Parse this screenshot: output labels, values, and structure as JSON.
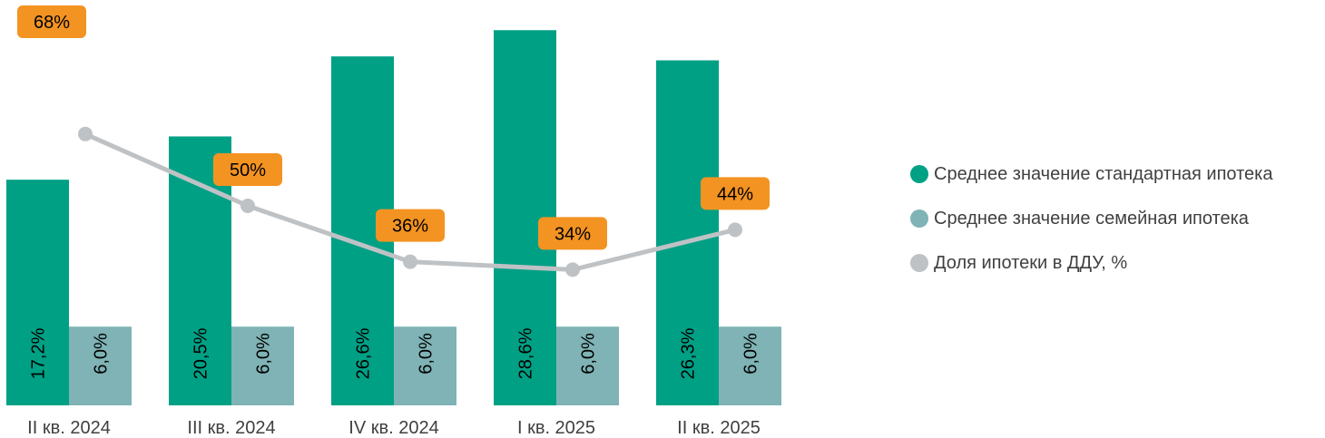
{
  "chart_data": {
    "type": "bar",
    "categories": [
      "II кв. 2024",
      "III кв. 2024",
      "IV кв. 2024",
      "I кв. 2025",
      "II кв. 2025"
    ],
    "series": [
      {
        "name": "Среднее значение стандартная ипотека",
        "type": "bar",
        "values": [
          17.2,
          20.5,
          26.6,
          28.6,
          26.3
        ],
        "labels": [
          "17,2%",
          "20,5%",
          "26,6%",
          "28,6%",
          "26,3%"
        ],
        "color": "#00A085"
      },
      {
        "name": "Среднее значение семейная ипотека",
        "type": "bar",
        "values": [
          6.0,
          6.0,
          6.0,
          6.0,
          6.0
        ],
        "labels": [
          "6,0%",
          "6,0%",
          "6,0%",
          "6,0%",
          "6,0%"
        ],
        "color": "#7FB3B5"
      },
      {
        "name": "Доля ипотеки в ДДУ, %",
        "type": "line",
        "values": [
          68,
          50,
          36,
          34,
          44
        ],
        "labels": [
          "68%",
          "50%",
          "36%",
          "34%",
          "44%"
        ],
        "color": "#BFC2C5",
        "label_color": "#F39322"
      }
    ],
    "legend_position": "right",
    "grid": false,
    "ylim_bars": [
      0,
      30.9
    ],
    "ylim_line": [
      0,
      100
    ]
  }
}
